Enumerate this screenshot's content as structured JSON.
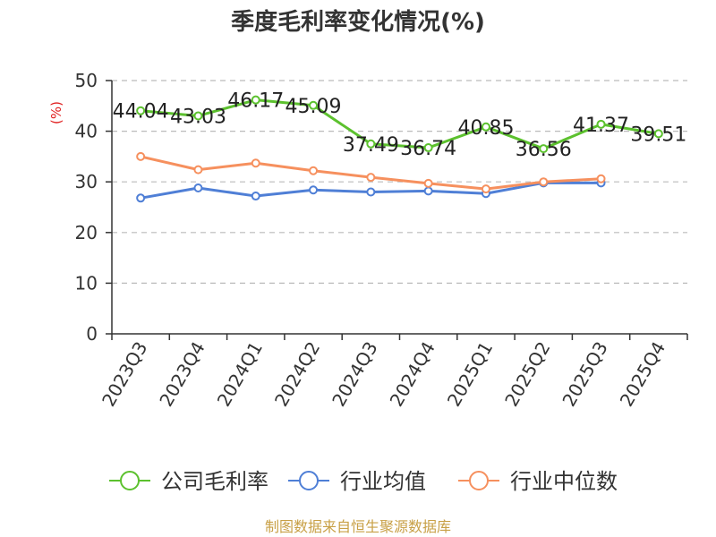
{
  "chart_data": {
    "type": "line",
    "title": "季度毛利率变化情况(%)",
    "ylabel": "(%)",
    "ylim": [
      0,
      50
    ],
    "yticks": [
      0,
      10,
      20,
      30,
      40,
      50
    ],
    "grid": true,
    "legend_position": "bottom",
    "categories": [
      "2023Q3",
      "2023Q4",
      "2024Q1",
      "2024Q2",
      "2024Q3",
      "2024Q4",
      "2025Q1",
      "2025Q2",
      "2025Q3",
      "2025Q4"
    ],
    "series": [
      {
        "name": "公司毛利率",
        "color": "#5cc12e",
        "values": [
          44.04,
          43.03,
          46.17,
          45.09,
          37.49,
          36.74,
          40.85,
          36.56,
          41.37,
          39.51
        ],
        "labels": [
          "44.04",
          "43.03",
          "46.17",
          "45.09",
          "37.49",
          "36.74",
          "40.85",
          "36.56",
          "41.37",
          "39.51"
        ]
      },
      {
        "name": "行业均值",
        "color": "#4f7fd6",
        "values": [
          26.8,
          28.8,
          27.2,
          28.4,
          28.0,
          28.2,
          27.7,
          29.8,
          29.8,
          null
        ]
      },
      {
        "name": "行业中位数",
        "color": "#f6905e",
        "values": [
          35.0,
          32.4,
          33.7,
          32.2,
          30.9,
          29.7,
          28.6,
          30.0,
          30.6,
          null
        ]
      }
    ]
  },
  "source": "制图数据来自恒生聚源数据库"
}
